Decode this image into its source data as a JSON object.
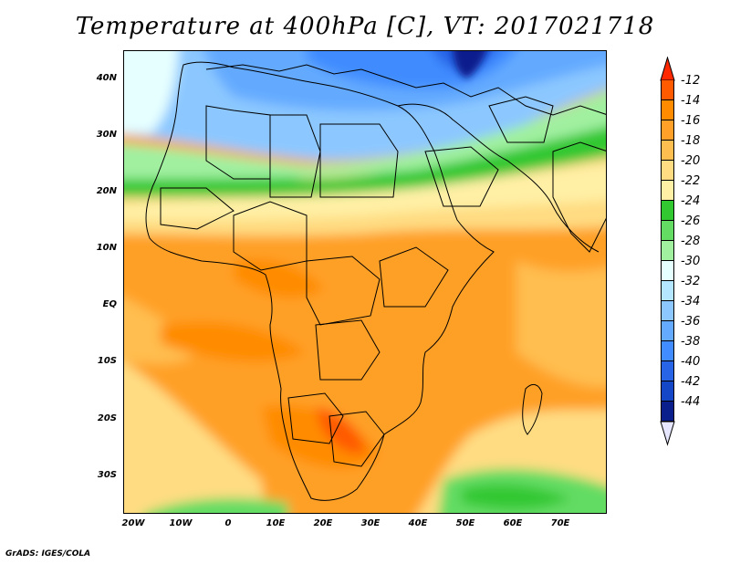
{
  "title": "Temperature at 400hPa [C], VT: 2017021718",
  "footer": "GrADS: IGES/COLA",
  "map": {
    "lon_range": [
      -22,
      80
    ],
    "lat_range": [
      -37,
      45
    ],
    "lat_labels": [
      {
        "text": "40N",
        "lat": 40
      },
      {
        "text": "30N",
        "lat": 30
      },
      {
        "text": "20N",
        "lat": 20
      },
      {
        "text": "10N",
        "lat": 10
      },
      {
        "text": "EQ",
        "lat": 0
      },
      {
        "text": "10S",
        "lat": -10
      },
      {
        "text": "20S",
        "lat": -20
      },
      {
        "text": "30S",
        "lat": -30
      }
    ],
    "lon_labels": [
      {
        "text": "20W",
        "lon": -20
      },
      {
        "text": "10W",
        "lon": -10
      },
      {
        "text": "0",
        "lon": 0
      },
      {
        "text": "10E",
        "lon": 10
      },
      {
        "text": "20E",
        "lon": 20
      },
      {
        "text": "30E",
        "lon": 30
      },
      {
        "text": "40E",
        "lon": 40
      },
      {
        "text": "50E",
        "lon": 50
      },
      {
        "text": "60E",
        "lon": 60
      },
      {
        "text": "70E",
        "lon": 70
      }
    ]
  },
  "colorbar": {
    "labels": [
      "-12",
      "-14",
      "-16",
      "-18",
      "-20",
      "-22",
      "-24",
      "-26",
      "-28",
      "-30",
      "-32",
      "-34",
      "-36",
      "-38",
      "-40",
      "-42",
      "-44"
    ],
    "colors": [
      "#ff5a00",
      "#ff8c00",
      "#ffa028",
      "#ffbe50",
      "#ffdc82",
      "#fff0a6",
      "#32c832",
      "#64dc64",
      "#a0f0a0",
      "#e6ffff",
      "#b4e6ff",
      "#8cc8ff",
      "#64aaff",
      "#418cff",
      "#2864e6",
      "#1446c8",
      "#0a1e8c"
    ],
    "top_color": "#ff2800",
    "bottom_color": "#e6e6ff"
  }
}
